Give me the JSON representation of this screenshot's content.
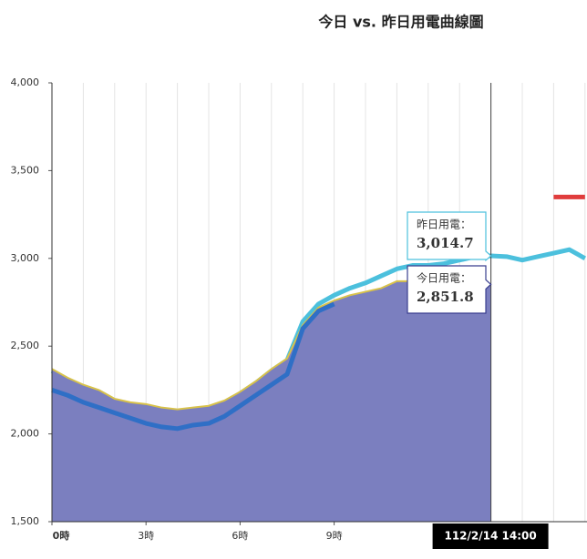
{
  "chart_data": {
    "type": "line",
    "title": "今日 vs. 昨日用電曲線圖",
    "x": [
      0,
      0.5,
      1,
      1.5,
      2,
      2.5,
      3,
      3.5,
      4,
      4.5,
      5,
      5.5,
      6,
      6.5,
      7,
      7.5,
      8,
      8.5,
      9,
      9.5,
      10,
      10.5,
      11,
      11.5,
      12,
      12.5,
      13,
      13.5,
      14,
      14.5,
      15,
      15.5,
      16,
      16.5,
      17
    ],
    "series": [
      {
        "style": "line",
        "color": "#4cc0dd",
        "values": [
          2360,
          2310,
          2270,
          2240,
          2190,
          2170,
          2160,
          2140,
          2130,
          2140,
          2150,
          2180,
          2230,
          2290,
          2360,
          2420,
          2640,
          2740,
          2790,
          2830,
          2860,
          2900,
          2940,
          2960,
          2960,
          2970,
          2990,
          3010,
          3014.7,
          3010,
          2990,
          3010,
          3030,
          3050,
          3000
        ]
      },
      {
        "style": "area",
        "color": "#7b7fbf",
        "edge_color": "#d8c24a",
        "values": [
          2370,
          2320,
          2280,
          2250,
          2200,
          2180,
          2170,
          2150,
          2140,
          2150,
          2160,
          2190,
          2240,
          2300,
          2370,
          2430,
          2620,
          2720,
          2760,
          2790,
          2810,
          2830,
          2870,
          2870,
          2860,
          2840,
          2850,
          2850,
          2851.8,
          null,
          null,
          null,
          null,
          null,
          null
        ]
      },
      {
        "style": "line",
        "color": "#2f6fc6",
        "values": [
          2250,
          2220,
          2180,
          2150,
          2120,
          2090,
          2060,
          2040,
          2030,
          2050,
          2060,
          2100,
          2160,
          2220,
          2280,
          2340,
          2600,
          2700,
          2740,
          null,
          null,
          null,
          null,
          null,
          null,
          null,
          null,
          null,
          null,
          null,
          null,
          null,
          null,
          null,
          null
        ]
      }
    ],
    "marker": {
      "color": "#e03c3c",
      "value": 3350,
      "x": [
        16,
        17
      ]
    },
    "xlim": [
      0,
      17
    ],
    "xticks": [
      {
        "value": 0,
        "label": "0時"
      },
      {
        "value": 3,
        "label": "3時"
      },
      {
        "value": 6,
        "label": "6時"
      },
      {
        "value": 9,
        "label": "9時"
      }
    ],
    "minor_xticks": [
      1,
      2,
      3,
      4,
      5,
      6,
      7,
      8,
      9,
      10,
      11,
      12,
      13,
      14,
      15,
      16,
      17
    ],
    "ylim": [
      1500,
      4000
    ],
    "yticks": [
      {
        "value": 1500,
        "label": "1,500"
      },
      {
        "value": 2000,
        "label": "2,000"
      },
      {
        "value": 2500,
        "label": "2,500"
      },
      {
        "value": 3000,
        "label": "3,000"
      },
      {
        "value": 3500,
        "label": "3,500"
      },
      {
        "value": 4000,
        "label": "4,000"
      }
    ],
    "crosshair": {
      "x": 14,
      "label": "112/2/14 14:00"
    },
    "tooltips": [
      {
        "label": "昨日用電：",
        "value": 3014.7,
        "value_label": "3,014.7",
        "color": "#4cc0dd"
      },
      {
        "label": "今日用電：",
        "value": 2851.8,
        "value_label": "2,851.8",
        "color": "#3a3f8f"
      }
    ]
  }
}
